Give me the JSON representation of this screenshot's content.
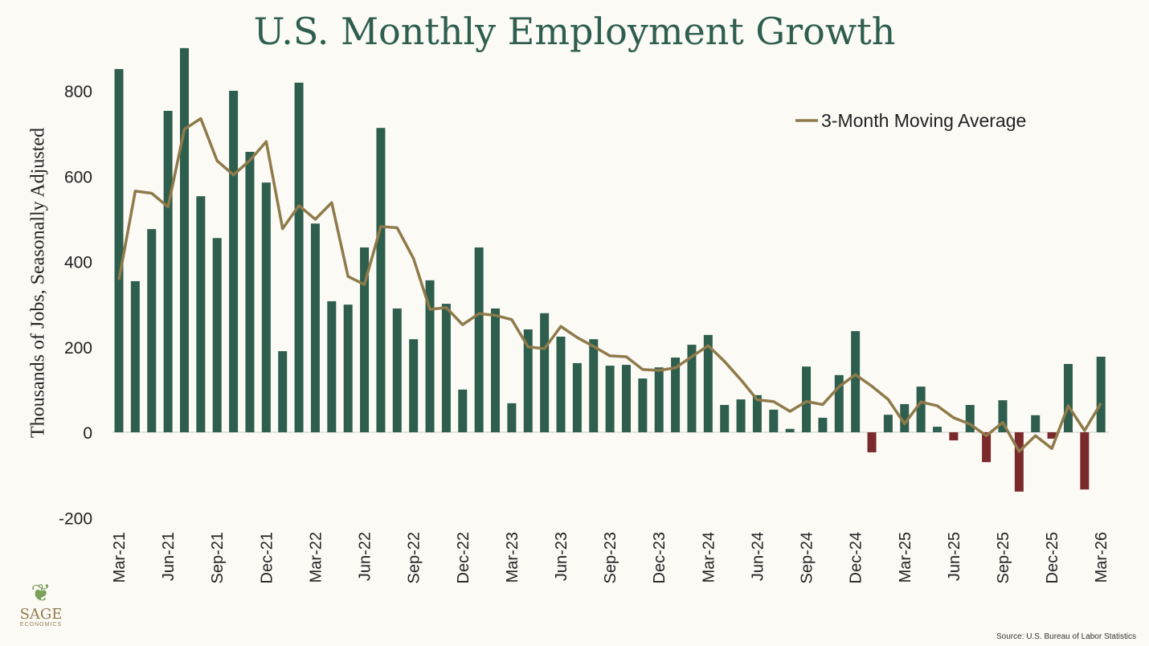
{
  "chart_data": {
    "type": "bar",
    "title": "U.S. Monthly Employment Growth",
    "ylabel": "Thousands of Jobs, Seasonally Adjusted",
    "xlabel": "",
    "ylim": [
      -200,
      900
    ],
    "yticks": [
      -200,
      0,
      200,
      400,
      600,
      800
    ],
    "grid": false,
    "legend_position": "top-right",
    "colors": {
      "positive": "#2e5e4e",
      "negative": "#7b2a2c",
      "line": "#8f7a4a",
      "title": "#2e5e4e"
    },
    "categories": [
      "Mar-21",
      "Apr-21",
      "May-21",
      "Jun-21",
      "Jul-21",
      "Aug-21",
      "Sep-21",
      "Oct-21",
      "Nov-21",
      "Dec-21",
      "Jan-22",
      "Feb-22",
      "Mar-22",
      "Apr-22",
      "May-22",
      "Jun-22",
      "Jul-22",
      "Aug-22",
      "Sep-22",
      "Oct-22",
      "Nov-22",
      "Dec-22",
      "Jan-23",
      "Feb-23",
      "Mar-23",
      "Apr-23",
      "May-23",
      "Jun-23",
      "Jul-23",
      "Aug-23",
      "Sep-23",
      "Oct-23",
      "Nov-23",
      "Dec-23",
      "Jan-24",
      "Feb-24",
      "Mar-24",
      "Apr-24",
      "May-24",
      "Jun-24",
      "Jul-24",
      "Aug-24",
      "Sep-24",
      "Oct-24",
      "Nov-24",
      "Dec-24",
      "Jan-25",
      "Feb-25",
      "Mar-25",
      "Apr-25",
      "May-25",
      "Jun-25",
      "Jul-25",
      "Aug-25",
      "Sep-25",
      "Oct-25",
      "Nov-25",
      "Dec-25",
      "Jan-26",
      "Feb-26",
      "Mar-26"
    ],
    "tick_labels": [
      "Mar-21",
      "Jun-21",
      "Sep-21",
      "Dec-21",
      "Mar-22",
      "Jun-22",
      "Sep-22",
      "Dec-22",
      "Mar-23",
      "Jun-23",
      "Sep-23",
      "Dec-23",
      "Mar-24",
      "Jun-24",
      "Sep-24",
      "Dec-24",
      "Mar-25",
      "Jun-25",
      "Sep-25",
      "Dec-25",
      "Mar-26"
    ],
    "series": [
      {
        "name": "Monthly Change",
        "type": "bar",
        "values": [
          851,
          354,
          476,
          753,
          900,
          553,
          455,
          800,
          657,
          585,
          190,
          819,
          489,
          307,
          299,
          433,
          713,
          290,
          218,
          356,
          301,
          100,
          433,
          290,
          68,
          241,
          279,
          224,
          162,
          218,
          156,
          158,
          126,
          152,
          175,
          205,
          228,
          64,
          77,
          87,
          53,
          8,
          154,
          34,
          134,
          237,
          -47,
          41,
          66,
          107,
          13,
          -19,
          64,
          -70,
          75,
          -139,
          40,
          -15,
          160,
          -134,
          177
        ]
      },
      {
        "name": "3-Month Moving Average",
        "type": "line",
        "values": [
          357,
          565,
          560,
          528,
          710,
          735,
          636,
          603,
          637,
          681,
          477,
          531,
          499,
          538,
          365,
          346,
          482,
          479,
          407,
          288,
          292,
          252,
          278,
          274,
          264,
          200,
          196,
          248,
          222,
          201,
          179,
          177,
          147,
          145,
          151,
          177,
          203,
          166,
          123,
          76,
          72,
          49,
          72,
          65,
          107,
          135,
          108,
          77,
          20,
          71,
          62,
          34,
          19,
          -8,
          23,
          -45,
          -8,
          -38,
          62,
          4,
          68
        ]
      }
    ],
    "source": "Source: U.S. Bureau of Labor Statistics"
  },
  "logo": {
    "name": "SAGE",
    "sub": "ECONOMICS"
  }
}
